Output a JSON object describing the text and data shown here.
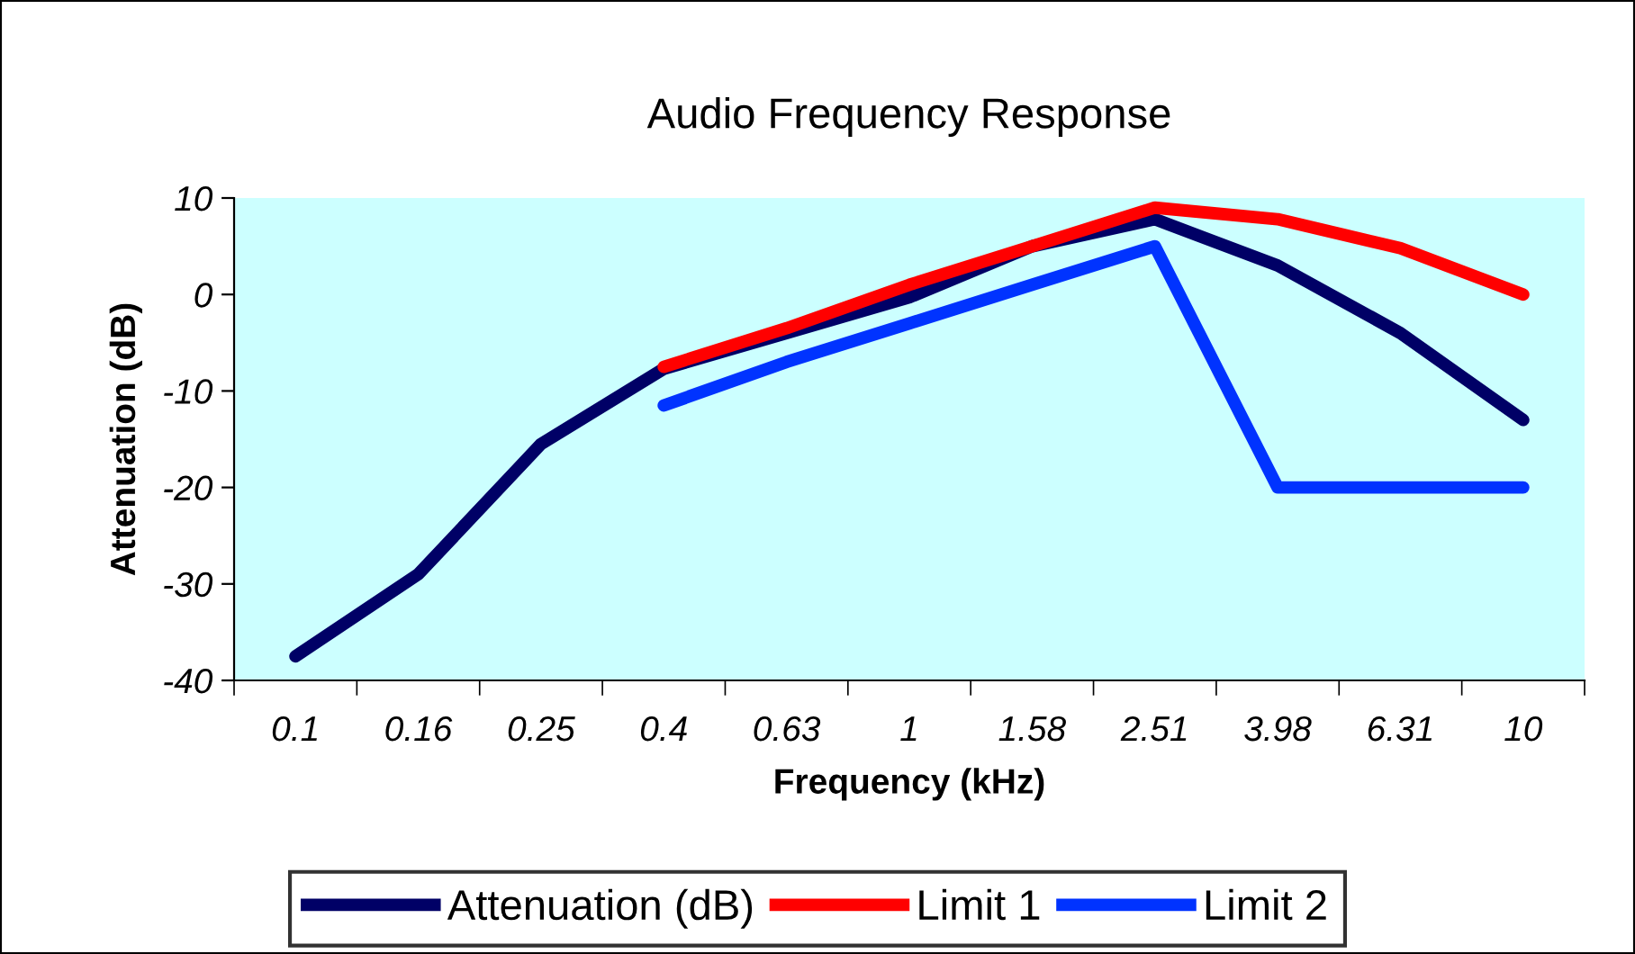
{
  "chart_data": {
    "type": "line",
    "title": "Audio Frequency Response",
    "xlabel": "Frequency (kHz)",
    "ylabel": "Attenuation (dB)",
    "categories": [
      "0.1",
      "0.16",
      "0.25",
      "0.4",
      "0.63",
      "1",
      "1.58",
      "2.51",
      "3.98",
      "6.31",
      "10"
    ],
    "series": [
      {
        "name": "Attenuation (dB)",
        "color": "#000066",
        "values": [
          -37.5,
          -29,
          -15.5,
          -7.7,
          -4,
          -0.3,
          5,
          7.8,
          3,
          -4,
          -13
        ]
      },
      {
        "name": "Limit 1",
        "color": "#ff0000",
        "values": [
          null,
          null,
          null,
          -7.5,
          -3.5,
          1,
          5,
          9,
          7.8,
          4.8,
          0
        ]
      },
      {
        "name": "Limit 2",
        "color": "#0033ff",
        "values": [
          null,
          null,
          null,
          -11.5,
          -7,
          -3,
          1,
          5,
          -20,
          -20,
          -20
        ]
      }
    ],
    "ylim": [
      -40,
      10
    ],
    "yticks": [
      -40,
      -30,
      -20,
      -10,
      0,
      10
    ],
    "grid": false,
    "legend": "bottom",
    "marker": "none",
    "line_style": "solid"
  }
}
